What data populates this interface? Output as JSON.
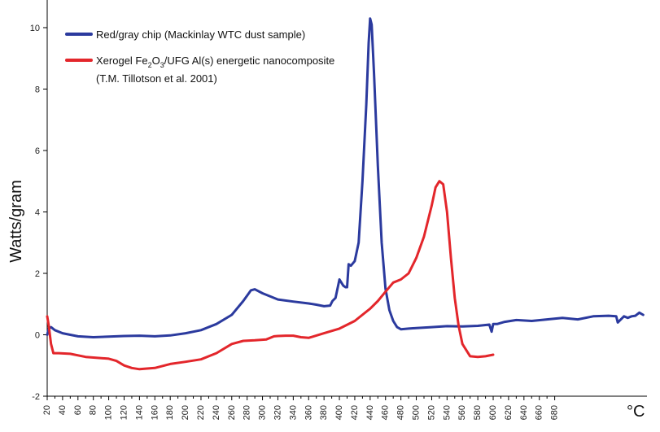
{
  "chart_data": {
    "type": "line",
    "ylabel": "Watts/gram",
    "xunit_label": "°C",
    "xlim": [
      20,
      800
    ],
    "ylim": [
      -2,
      10.9
    ],
    "xticks": [
      20,
      40,
      60,
      80,
      100,
      120,
      140,
      160,
      180,
      200,
      220,
      240,
      260,
      280,
      300,
      320,
      340,
      360,
      380,
      400,
      420,
      440,
      460,
      480,
      500,
      520,
      540,
      560,
      580,
      600,
      620,
      640,
      660,
      680
    ],
    "yticks": [
      -2,
      0,
      2,
      4,
      6,
      8,
      10
    ],
    "grid": false,
    "legend_position": "top-left",
    "legend": [
      {
        "label": "Red/gray chip (Mackinlay WTC dust sample)",
        "color": "#2b3a9e"
      },
      {
        "label": "Xerogel Fe2O3/UFG Al(s) energetic nanocomposite",
        "label_parts": {
          "a": "Xerogel Fe",
          "sub1": "2",
          "b": "O",
          "sub2": "3",
          "c": "/UFG Al(s) energetic nanocomposite"
        },
        "label_line2": "(T.M. Tillotson et al. 2001)",
        "color": "#e3262b"
      }
    ],
    "series": [
      {
        "name": "Red/gray chip (Mackinlay WTC dust sample)",
        "color": "#2b3a9e",
        "x": [
          20,
          22,
          25,
          30,
          40,
          60,
          80,
          100,
          120,
          140,
          160,
          180,
          200,
          220,
          240,
          260,
          275,
          285,
          290,
          300,
          320,
          340,
          360,
          370,
          380,
          388,
          391,
          395,
          400,
          405,
          408,
          410,
          412,
          415,
          420,
          425,
          430,
          435,
          438,
          440,
          442,
          445,
          450,
          455,
          460,
          465,
          470,
          475,
          480,
          490,
          500,
          520,
          540,
          560,
          580,
          595,
          598,
          600,
          605,
          615,
          630,
          650,
          670,
          690,
          710,
          730,
          750,
          760,
          762,
          770,
          775,
          780,
          785,
          790,
          795
        ],
        "y": [
          0.0,
          0.2,
          0.25,
          0.15,
          0.05,
          -0.05,
          -0.08,
          -0.06,
          -0.04,
          -0.03,
          -0.05,
          -0.02,
          0.05,
          0.15,
          0.35,
          0.65,
          1.1,
          1.45,
          1.48,
          1.35,
          1.15,
          1.08,
          1.02,
          0.98,
          0.93,
          0.95,
          1.1,
          1.2,
          1.8,
          1.6,
          1.55,
          1.55,
          2.3,
          2.25,
          2.4,
          3.0,
          5.0,
          7.5,
          9.5,
          10.3,
          10.1,
          8.5,
          5.5,
          3.0,
          1.5,
          0.8,
          0.45,
          0.25,
          0.18,
          0.2,
          0.22,
          0.25,
          0.28,
          0.27,
          0.29,
          0.33,
          0.1,
          0.35,
          0.35,
          0.42,
          0.48,
          0.45,
          0.5,
          0.55,
          0.5,
          0.6,
          0.62,
          0.6,
          0.4,
          0.6,
          0.55,
          0.6,
          0.62,
          0.72,
          0.65
        ]
      },
      {
        "name": "Xerogel Fe2O3/UFG Al(s) energetic nanocomposite",
        "color": "#e3262b",
        "x": [
          20,
          22,
          25,
          28,
          35,
          50,
          70,
          100,
          110,
          120,
          130,
          140,
          150,
          160,
          180,
          200,
          220,
          240,
          260,
          275,
          290,
          305,
          315,
          320,
          330,
          340,
          350,
          360,
          380,
          400,
          420,
          440,
          450,
          460,
          470,
          480,
          490,
          500,
          510,
          520,
          525,
          530,
          535,
          540,
          545,
          550,
          555,
          560,
          570,
          580,
          590,
          600
        ],
        "y": [
          0.6,
          0.3,
          -0.3,
          -0.6,
          -0.6,
          -0.62,
          -0.72,
          -0.78,
          -0.85,
          -1.0,
          -1.08,
          -1.12,
          -1.1,
          -1.08,
          -0.95,
          -0.88,
          -0.8,
          -0.6,
          -0.3,
          -0.2,
          -0.18,
          -0.15,
          -0.05,
          -0.04,
          -0.03,
          -0.03,
          -0.08,
          -0.1,
          0.05,
          0.2,
          0.45,
          0.85,
          1.1,
          1.4,
          1.7,
          1.8,
          2.0,
          2.5,
          3.2,
          4.2,
          4.8,
          5.0,
          4.9,
          4.0,
          2.5,
          1.2,
          0.3,
          -0.3,
          -0.7,
          -0.72,
          -0.7,
          -0.65
        ]
      }
    ]
  }
}
